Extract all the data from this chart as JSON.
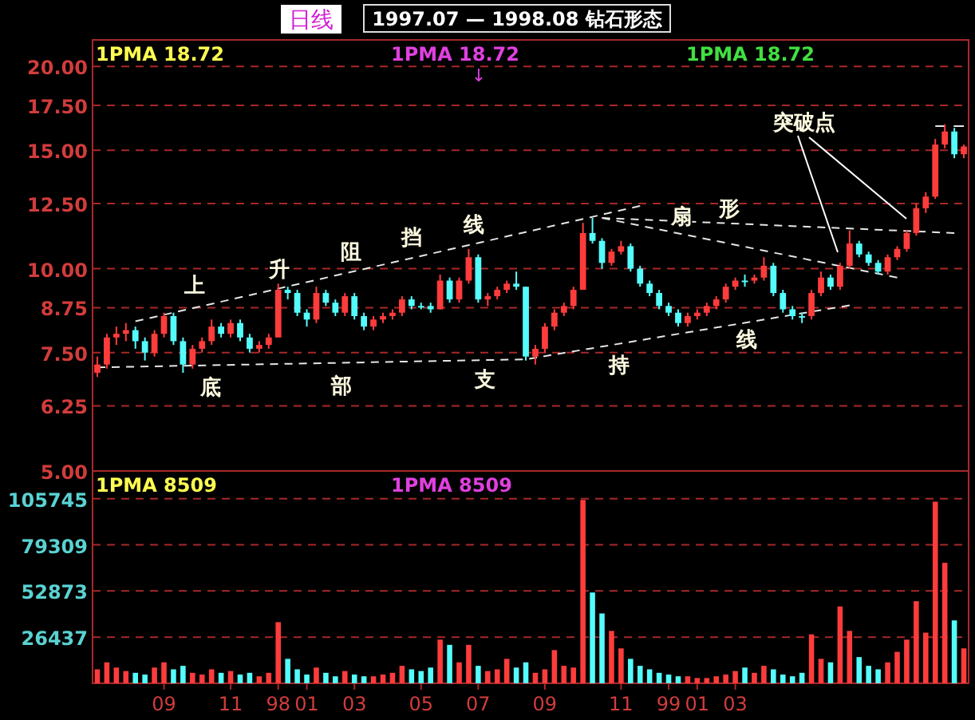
{
  "chart_data": [
    {
      "type": "candlestick",
      "title": "1997.07 — 1998.08 钻石形态",
      "subtitle": "日线",
      "ohlc": [
        [
          7.0,
          7.4,
          6.9,
          7.2
        ],
        [
          7.2,
          8.0,
          7.1,
          7.9
        ],
        [
          7.9,
          8.2,
          7.7,
          8.0
        ],
        [
          8.0,
          8.3,
          7.8,
          8.1
        ],
        [
          8.1,
          8.2,
          7.6,
          7.8
        ],
        [
          7.8,
          7.9,
          7.3,
          7.5
        ],
        [
          7.5,
          8.1,
          7.4,
          8.0
        ],
        [
          8.0,
          8.6,
          7.9,
          8.5
        ],
        [
          8.5,
          8.6,
          7.7,
          7.8
        ],
        [
          7.8,
          7.9,
          7.0,
          7.2
        ],
        [
          7.2,
          7.7,
          7.1,
          7.6
        ],
        [
          7.6,
          7.9,
          7.5,
          7.8
        ],
        [
          7.8,
          8.4,
          7.7,
          8.2
        ],
        [
          8.2,
          8.3,
          7.9,
          8.0
        ],
        [
          8.0,
          8.4,
          7.9,
          8.3
        ],
        [
          8.3,
          8.4,
          7.8,
          7.9
        ],
        [
          7.9,
          8.0,
          7.5,
          7.6
        ],
        [
          7.6,
          7.8,
          7.5,
          7.7
        ],
        [
          7.7,
          8.0,
          7.6,
          7.9
        ],
        [
          7.9,
          9.5,
          7.9,
          9.3
        ],
        [
          9.3,
          9.4,
          9.0,
          9.2
        ],
        [
          9.2,
          9.3,
          8.5,
          8.6
        ],
        [
          8.6,
          8.7,
          8.2,
          8.4
        ],
        [
          8.4,
          9.4,
          8.3,
          9.2
        ],
        [
          9.2,
          9.3,
          8.8,
          8.9
        ],
        [
          8.9,
          9.0,
          8.5,
          8.6
        ],
        [
          8.6,
          9.2,
          8.5,
          9.1
        ],
        [
          9.1,
          9.2,
          8.4,
          8.5
        ],
        [
          8.5,
          8.6,
          8.1,
          8.2
        ],
        [
          8.2,
          8.5,
          8.1,
          8.4
        ],
        [
          8.4,
          8.6,
          8.3,
          8.5
        ],
        [
          8.5,
          8.7,
          8.4,
          8.6
        ],
        [
          8.6,
          9.1,
          8.5,
          9.0
        ],
        [
          9.0,
          9.1,
          8.7,
          8.8
        ],
        [
          8.8,
          8.9,
          8.7,
          8.8
        ],
        [
          8.8,
          8.9,
          8.6,
          8.7
        ],
        [
          8.7,
          9.8,
          8.7,
          9.6
        ],
        [
          9.6,
          9.7,
          8.9,
          9.0
        ],
        [
          9.0,
          9.7,
          8.9,
          9.6
        ],
        [
          9.6,
          10.7,
          9.5,
          10.4
        ],
        [
          10.4,
          10.5,
          8.9,
          9.0
        ],
        [
          9.0,
          9.2,
          8.8,
          9.1
        ],
        [
          9.1,
          9.4,
          9.0,
          9.3
        ],
        [
          9.3,
          9.6,
          9.2,
          9.5
        ],
        [
          9.5,
          9.9,
          9.3,
          9.4
        ],
        [
          9.4,
          9.4,
          7.3,
          7.4
        ],
        [
          7.4,
          7.7,
          7.2,
          7.6
        ],
        [
          7.6,
          8.3,
          7.5,
          8.2
        ],
        [
          8.2,
          8.7,
          8.1,
          8.6
        ],
        [
          8.6,
          8.9,
          8.5,
          8.8
        ],
        [
          8.8,
          9.4,
          8.7,
          9.3
        ],
        [
          9.3,
          11.7,
          9.3,
          11.3
        ],
        [
          11.3,
          11.9,
          10.9,
          11.0
        ],
        [
          11.0,
          11.1,
          10.0,
          10.2
        ],
        [
          10.2,
          10.7,
          10.1,
          10.6
        ],
        [
          10.6,
          11.0,
          10.5,
          10.8
        ],
        [
          10.8,
          10.9,
          9.9,
          10.0
        ],
        [
          10.0,
          10.1,
          9.4,
          9.5
        ],
        [
          9.5,
          9.6,
          9.1,
          9.2
        ],
        [
          9.2,
          9.3,
          8.7,
          8.8
        ],
        [
          8.8,
          8.9,
          8.5,
          8.6
        ],
        [
          8.6,
          8.7,
          8.2,
          8.3
        ],
        [
          8.3,
          8.6,
          8.2,
          8.5
        ],
        [
          8.5,
          8.7,
          8.4,
          8.6
        ],
        [
          8.6,
          8.9,
          8.5,
          8.8
        ],
        [
          8.8,
          9.1,
          8.7,
          9.0
        ],
        [
          9.0,
          9.5,
          8.9,
          9.4
        ],
        [
          9.4,
          9.7,
          9.3,
          9.6
        ],
        [
          9.6,
          9.8,
          9.4,
          9.6
        ],
        [
          9.6,
          9.8,
          9.5,
          9.7
        ],
        [
          9.7,
          10.4,
          9.6,
          10.1
        ],
        [
          10.1,
          10.2,
          9.1,
          9.2
        ],
        [
          9.2,
          9.3,
          8.6,
          8.7
        ],
        [
          8.7,
          8.8,
          8.4,
          8.5
        ],
        [
          8.5,
          8.6,
          8.3,
          8.5
        ],
        [
          8.5,
          9.3,
          8.4,
          9.2
        ],
        [
          9.2,
          9.9,
          9.1,
          9.7
        ],
        [
          9.7,
          9.8,
          9.3,
          9.4
        ],
        [
          9.4,
          10.2,
          9.3,
          10.1
        ],
        [
          10.1,
          11.4,
          10.0,
          10.9
        ],
        [
          10.9,
          11.0,
          10.4,
          10.5
        ],
        [
          10.5,
          10.6,
          10.1,
          10.2
        ],
        [
          10.2,
          10.3,
          9.8,
          9.9
        ],
        [
          9.9,
          10.5,
          9.8,
          10.4
        ],
        [
          10.4,
          10.8,
          10.3,
          10.7
        ],
        [
          10.7,
          11.4,
          10.6,
          11.3
        ],
        [
          11.3,
          12.5,
          11.2,
          12.3
        ],
        [
          12.3,
          13.0,
          12.1,
          12.8
        ],
        [
          12.8,
          15.6,
          12.7,
          15.3
        ],
        [
          15.3,
          16.4,
          15.1,
          16.0
        ],
        [
          16.0,
          16.2,
          14.6,
          14.8
        ],
        [
          14.8,
          15.3,
          14.6,
          15.2
        ]
      ],
      "colors": [
        "#ff3c3c",
        "#ff3c3c",
        "#ff3c3c",
        "#ff3c3c",
        "#54fcfc",
        "#54fcfc",
        "#ff3c3c",
        "#ff3c3c",
        "#54fcfc",
        "#54fcfc",
        "#ff3c3c",
        "#ff3c3c",
        "#ff3c3c",
        "#54fcfc",
        "#ff3c3c",
        "#54fcfc",
        "#54fcfc",
        "#ff3c3c",
        "#ff3c3c",
        "#ff3c3c",
        "#54fcfc",
        "#54fcfc",
        "#54fcfc",
        "#ff3c3c",
        "#54fcfc",
        "#54fcfc",
        "#ff3c3c",
        "#54fcfc",
        "#54fcfc",
        "#ff3c3c",
        "#ff3c3c",
        "#ff3c3c",
        "#ff3c3c",
        "#54fcfc",
        "#54fcfc",
        "#54fcfc",
        "#ff3c3c",
        "#54fcfc",
        "#ff3c3c",
        "#ff3c3c",
        "#54fcfc",
        "#ff3c3c",
        "#ff3c3c",
        "#ff3c3c",
        "#54fcfc",
        "#54fcfc",
        "#ff3c3c",
        "#ff3c3c",
        "#ff3c3c",
        "#ff3c3c",
        "#ff3c3c",
        "#ff3c3c",
        "#54fcfc",
        "#54fcfc",
        "#ff3c3c",
        "#ff3c3c",
        "#54fcfc",
        "#54fcfc",
        "#54fcfc",
        "#54fcfc",
        "#54fcfc",
        "#54fcfc",
        "#ff3c3c",
        "#ff3c3c",
        "#ff3c3c",
        "#ff3c3c",
        "#ff3c3c",
        "#ff3c3c",
        "#54fcfc",
        "#ff3c3c",
        "#ff3c3c",
        "#54fcfc",
        "#54fcfc",
        "#54fcfc",
        "#54fcfc",
        "#ff3c3c",
        "#ff3c3c",
        "#54fcfc",
        "#ff3c3c",
        "#ff3c3c",
        "#54fcfc",
        "#54fcfc",
        "#54fcfc",
        "#ff3c3c",
        "#ff3c3c",
        "#ff3c3c",
        "#ff3c3c",
        "#ff3c3c",
        "#ff3c3c",
        "#ff3c3c",
        "#54fcfc",
        "#ff3c3c"
      ],
      "series": [
        {
          "type": "line",
          "color": "#e6e6e6",
          "line_style": "dashed",
          "values": [
            null,
            null,
            null,
            null,
            8.35,
            null,
            null,
            null,
            null,
            null,
            null,
            null,
            null,
            null,
            null,
            null,
            null,
            null,
            null,
            null,
            null,
            null,
            null,
            null,
            null,
            null,
            null,
            null,
            null,
            null,
            null,
            null,
            null,
            null,
            null,
            null,
            null,
            null,
            null,
            null,
            null,
            null,
            null,
            null,
            null,
            null,
            null,
            null,
            null,
            null,
            null,
            null,
            null,
            null,
            null,
            null,
            null,
            12.4,
            null,
            null,
            null,
            null,
            null,
            null,
            null,
            null,
            null,
            null,
            null,
            null,
            null,
            null,
            null,
            null,
            null,
            null,
            null,
            null,
            null,
            null,
            null,
            null,
            null,
            null,
            null,
            null,
            null,
            null,
            null,
            null,
            null,
            null
          ]
        },
        {
          "type": "line",
          "color": "#e6e6e6",
          "line_style": "dashed",
          "values": [
            7.13,
            null,
            null,
            null,
            null,
            null,
            null,
            null,
            null,
            null,
            null,
            null,
            null,
            null,
            null,
            null,
            null,
            null,
            null,
            null,
            null,
            null,
            null,
            null,
            null,
            null,
            null,
            null,
            null,
            null,
            null,
            null,
            null,
            null,
            null,
            null,
            null,
            null,
            null,
            null,
            null,
            null,
            null,
            null,
            null,
            7.33,
            null,
            null,
            null,
            null,
            null,
            null,
            null,
            null,
            null,
            null,
            null,
            null,
            null,
            null,
            null,
            null,
            null,
            null,
            null,
            null,
            null,
            null,
            null,
            null,
            null,
            null,
            null,
            null,
            null,
            null,
            null,
            null,
            null,
            8.82,
            null,
            null,
            null,
            null,
            null,
            null,
            null,
            null,
            null,
            null,
            null,
            null
          ]
        },
        {
          "type": "line",
          "color": "#e6e6e6",
          "line_style": "dashed",
          "values": [
            null,
            null,
            null,
            null,
            null,
            null,
            null,
            null,
            null,
            null,
            null,
            null,
            null,
            null,
            null,
            null,
            null,
            null,
            null,
            null,
            null,
            null,
            null,
            null,
            null,
            null,
            null,
            null,
            null,
            null,
            null,
            null,
            null,
            null,
            null,
            null,
            null,
            null,
            null,
            null,
            null,
            null,
            null,
            null,
            null,
            null,
            null,
            null,
            null,
            null,
            null,
            null,
            null,
            11.9,
            null,
            null,
            null,
            null,
            null,
            null,
            null,
            null,
            null,
            null,
            null,
            null,
            null,
            null,
            null,
            null,
            null,
            null,
            null,
            null,
            null,
            null,
            null,
            null,
            null,
            null,
            null,
            null,
            null,
            null,
            null,
            null,
            null,
            null,
            null,
            null,
            11.3,
            null
          ]
        },
        {
          "type": "line",
          "color": "#e6e6e6",
          "line_style": "dashed",
          "values": [
            null,
            null,
            null,
            null,
            null,
            null,
            null,
            null,
            null,
            null,
            null,
            null,
            null,
            null,
            null,
            null,
            null,
            null,
            null,
            null,
            null,
            null,
            null,
            null,
            null,
            null,
            null,
            null,
            null,
            null,
            null,
            null,
            null,
            null,
            null,
            null,
            null,
            null,
            null,
            null,
            null,
            null,
            null,
            null,
            null,
            null,
            null,
            null,
            null,
            null,
            null,
            null,
            null,
            11.9,
            null,
            null,
            null,
            null,
            null,
            null,
            null,
            null,
            null,
            null,
            null,
            null,
            null,
            null,
            null,
            null,
            null,
            null,
            null,
            null,
            null,
            null,
            null,
            null,
            null,
            null,
            null,
            null,
            null,
            null,
            9.7,
            null,
            null,
            null,
            null,
            null,
            null,
            null
          ]
        },
        {
          "type": "line",
          "color": "#e6e6e6",
          "line_style": "dashed",
          "values": [
            null,
            null,
            null,
            null,
            null,
            null,
            null,
            null,
            null,
            null,
            null,
            null,
            null,
            null,
            null,
            null,
            null,
            null,
            null,
            null,
            null,
            null,
            null,
            null,
            null,
            null,
            null,
            null,
            null,
            null,
            null,
            null,
            null,
            null,
            null,
            null,
            null,
            null,
            null,
            null,
            null,
            null,
            null,
            null,
            null,
            null,
            null,
            null,
            null,
            null,
            null,
            null,
            null,
            null,
            null,
            null,
            null,
            null,
            null,
            null,
            null,
            null,
            null,
            null,
            null,
            null,
            null,
            null,
            null,
            null,
            null,
            null,
            null,
            null,
            null,
            null,
            null,
            null,
            null,
            null,
            null,
            null,
            null,
            null,
            null,
            null,
            null,
            null,
            16.3,
            null,
            null,
            16.3
          ]
        }
      ],
      "log": true,
      "ylim": [
        5,
        21.9
      ],
      "yticks": [
        {
          "value": 5,
          "label": "5.00"
        },
        {
          "value": 6.25,
          "label": "6.25"
        },
        {
          "value": 7.5,
          "label": "7.50"
        },
        {
          "value": 8.75,
          "label": "8.75"
        },
        {
          "value": 10,
          "label": "10.00"
        },
        {
          "value": 12.5,
          "label": "12.50"
        },
        {
          "value": 15,
          "label": "15.00"
        },
        {
          "value": 17.5,
          "label": "17.50"
        },
        {
          "value": 20,
          "label": "20.00"
        }
      ],
      "categories": [
        null,
        null,
        null,
        null,
        null,
        null,
        null,
        null,
        null,
        null,
        null,
        null,
        null,
        null,
        null,
        null,
        null,
        null,
        null,
        null,
        null,
        null,
        null,
        null,
        null,
        null,
        null,
        null,
        null,
        null,
        null,
        null,
        null,
        null,
        null,
        null,
        null,
        null,
        null,
        null,
        null,
        null,
        null,
        null,
        null,
        null,
        null,
        null,
        null,
        null,
        null,
        null,
        null,
        null,
        null,
        null,
        null,
        null,
        null,
        null,
        null,
        null,
        null,
        null,
        null,
        null,
        null,
        null,
        null,
        null,
        null,
        null,
        null,
        null,
        null,
        null,
        null,
        null,
        null,
        null,
        null,
        null,
        null,
        null,
        null,
        null,
        null,
        null,
        null,
        null,
        null,
        null
      ],
      "grid": "y",
      "tick_labels": "y",
      "annotations": [
        "1PMA 18.72",
        "1PMA 18.72",
        "1PMA 18.72",
        "↓",
        "上",
        "升",
        "阻",
        "挡",
        "线",
        "底",
        "部",
        "支",
        "持",
        "线",
        "扇",
        "形",
        "突破点"
      ]
    },
    {
      "type": "bar",
      "values": [
        8000,
        12000,
        9000,
        7000,
        6000,
        5000,
        9000,
        12000,
        8000,
        10000,
        6000,
        5000,
        8000,
        6000,
        7000,
        5000,
        6000,
        4000,
        6000,
        35000,
        14000,
        8000,
        5000,
        9000,
        6000,
        4000,
        7000,
        5000,
        4000,
        4000,
        5000,
        6000,
        10000,
        8000,
        7000,
        9000,
        25000,
        22000,
        12000,
        22000,
        10000,
        7000,
        8000,
        14000,
        9000,
        12000,
        6000,
        8000,
        19000,
        10000,
        9000,
        105000,
        52000,
        40000,
        30000,
        20000,
        14000,
        10000,
        8000,
        6000,
        5000,
        4000,
        4000,
        3000,
        3000,
        4000,
        5000,
        7000,
        9000,
        6000,
        10000,
        8000,
        5000,
        4000,
        6000,
        28000,
        14000,
        12000,
        44000,
        30000,
        15000,
        10000,
        8000,
        12000,
        18000,
        25000,
        47000,
        29000,
        104000,
        69000,
        36000,
        20000
      ],
      "colors": [
        "#ff3c3c",
        "#ff3c3c",
        "#ff3c3c",
        "#ff3c3c",
        "#54fcfc",
        "#54fcfc",
        "#ff3c3c",
        "#ff3c3c",
        "#54fcfc",
        "#54fcfc",
        "#ff3c3c",
        "#ff3c3c",
        "#ff3c3c",
        "#54fcfc",
        "#ff3c3c",
        "#54fcfc",
        "#54fcfc",
        "#ff3c3c",
        "#ff3c3c",
        "#ff3c3c",
        "#54fcfc",
        "#54fcfc",
        "#54fcfc",
        "#ff3c3c",
        "#54fcfc",
        "#54fcfc",
        "#ff3c3c",
        "#54fcfc",
        "#54fcfc",
        "#ff3c3c",
        "#ff3c3c",
        "#ff3c3c",
        "#ff3c3c",
        "#54fcfc",
        "#54fcfc",
        "#54fcfc",
        "#ff3c3c",
        "#54fcfc",
        "#ff3c3c",
        "#ff3c3c",
        "#54fcfc",
        "#ff3c3c",
        "#ff3c3c",
        "#ff3c3c",
        "#54fcfc",
        "#54fcfc",
        "#ff3c3c",
        "#ff3c3c",
        "#ff3c3c",
        "#ff3c3c",
        "#ff3c3c",
        "#ff3c3c",
        "#54fcfc",
        "#54fcfc",
        "#ff3c3c",
        "#ff3c3c",
        "#54fcfc",
        "#54fcfc",
        "#54fcfc",
        "#54fcfc",
        "#54fcfc",
        "#54fcfc",
        "#ff3c3c",
        "#ff3c3c",
        "#ff3c3c",
        "#ff3c3c",
        "#ff3c3c",
        "#ff3c3c",
        "#54fcfc",
        "#ff3c3c",
        "#ff3c3c",
        "#54fcfc",
        "#54fcfc",
        "#54fcfc",
        "#54fcfc",
        "#ff3c3c",
        "#ff3c3c",
        "#54fcfc",
        "#ff3c3c",
        "#ff3c3c",
        "#54fcfc",
        "#54fcfc",
        "#54fcfc",
        "#ff3c3c",
        "#ff3c3c",
        "#ff3c3c",
        "#ff3c3c",
        "#ff3c3c",
        "#ff3c3c",
        "#ff3c3c",
        "#54fcfc",
        "#ff3c3c"
      ],
      "ylim": [
        0,
        121600
      ],
      "yticks": [
        26437,
        52873,
        79309,
        105745
      ],
      "categories": [
        null,
        null,
        null,
        null,
        null,
        null,
        null,
        "09",
        null,
        null,
        null,
        null,
        null,
        null,
        "11",
        null,
        null,
        null,
        null,
        "98",
        null,
        null,
        "01",
        null,
        null,
        null,
        null,
        "03",
        null,
        null,
        null,
        null,
        null,
        null,
        "05",
        null,
        null,
        null,
        null,
        null,
        "07",
        null,
        null,
        null,
        null,
        null,
        null,
        "09",
        null,
        null,
        null,
        null,
        null,
        null,
        null,
        "11",
        null,
        null,
        null,
        null,
        "99",
        null,
        null,
        "01",
        null,
        null,
        null,
        "03",
        null,
        null,
        null,
        null,
        null,
        null,
        null,
        null,
        null,
        null,
        null,
        null,
        null,
        null,
        null,
        null,
        null,
        null,
        null,
        null,
        null,
        null,
        null,
        null
      ],
      "grid": "y",
      "annotations": [
        "1PMA 8509",
        "1PMA 8509"
      ]
    }
  ]
}
